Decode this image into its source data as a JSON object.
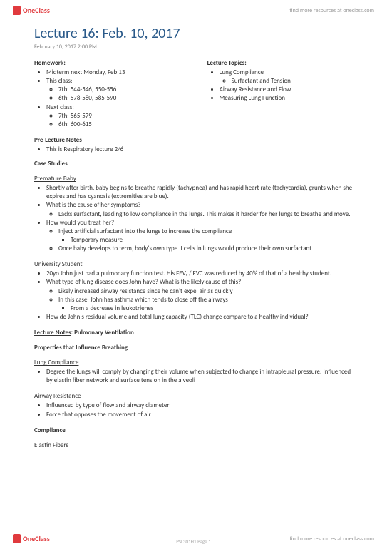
{
  "brand": "OneClass",
  "header_link": "find more resources at oneclass.com",
  "footer_link": "find more resources at oneclass.com",
  "page_num": "PSL301H1 Page 1",
  "title": "Lecture 16: Feb. 10, 2017",
  "date_line": "February 10, 2017       2:00 PM",
  "homework": {
    "head": "Homework:",
    "items": [
      "Midterm next Monday, Feb 13",
      "This class:",
      "Next class:"
    ],
    "this_class": [
      "7th: 544-546, 550-556",
      "6th: 578-580, 585-590"
    ],
    "next_class": [
      "7th: 565-579",
      "6th: 600-615"
    ]
  },
  "topics": {
    "head": "Lecture Topics:",
    "items": [
      "Lung Compliance",
      "Airway Resistance and Flow",
      "Measuring Lung Function"
    ],
    "sub": [
      "Surfactant and Tension"
    ]
  },
  "prelecture": {
    "head": "Pre-Lecture Notes",
    "item": "This is Respiratory lecture 2/6"
  },
  "case_studies_head": "Case Studies",
  "case1": {
    "head": "Premature Baby",
    "b1": "Shortly after birth, baby begins to breathe rapidly (tachypnea) and has rapid heart rate (tachycardia), grunts when she expires and has cyanosis (extremities are blue).",
    "q1": "What is the cause of her symptoms?",
    "a1": "Lacks surfactant, leading to low compliance in the lungs. This makes it harder for her lungs to breathe and move.",
    "q2": "How would you treat her?",
    "a2": "Inject artificial surfactant into the lungs to increase the compliance",
    "a2s": "Temporary measure",
    "a3": "Once baby develops to term, body's own type II cells in lungs would produce their own surfactant"
  },
  "case2": {
    "head": "University Student",
    "b1": "20yo John just had a pulmonary function test. His FEV₁ / FVC was reduced by 40% of that of a healthy student.",
    "q1": "What type of lung disease does John have? What is the likely cause of this?",
    "a1": "Likely increased airway resistance since he can't expel air as quickly",
    "a2": "In this case, John has asthma which tends to close off the airways",
    "a2s": "From a decrease in leukotrienes",
    "q2": "How do John's residual volume and total lung capacity (TLC) change compare to a healthy individual?"
  },
  "lecture_notes": {
    "head": "Lecture Notes",
    "sub": ": Pulmonary Ventilation"
  },
  "props_head": "Properties that Influence Breathing",
  "lung_comp": {
    "head": "Lung Compliance",
    "b1": "Degree the lungs will comply by changing their volume when subjected to change in intrapleural pressure: Influenced by elastin fiber network and surface tension in the alveoli"
  },
  "airway": {
    "head": "Airway Resistance",
    "b1": "Influenced by type of flow and airway diameter",
    "b2": "Force that opposes the movement of air"
  },
  "compliance_head": "Compliance",
  "elastin_head": "Elastin Fibers"
}
